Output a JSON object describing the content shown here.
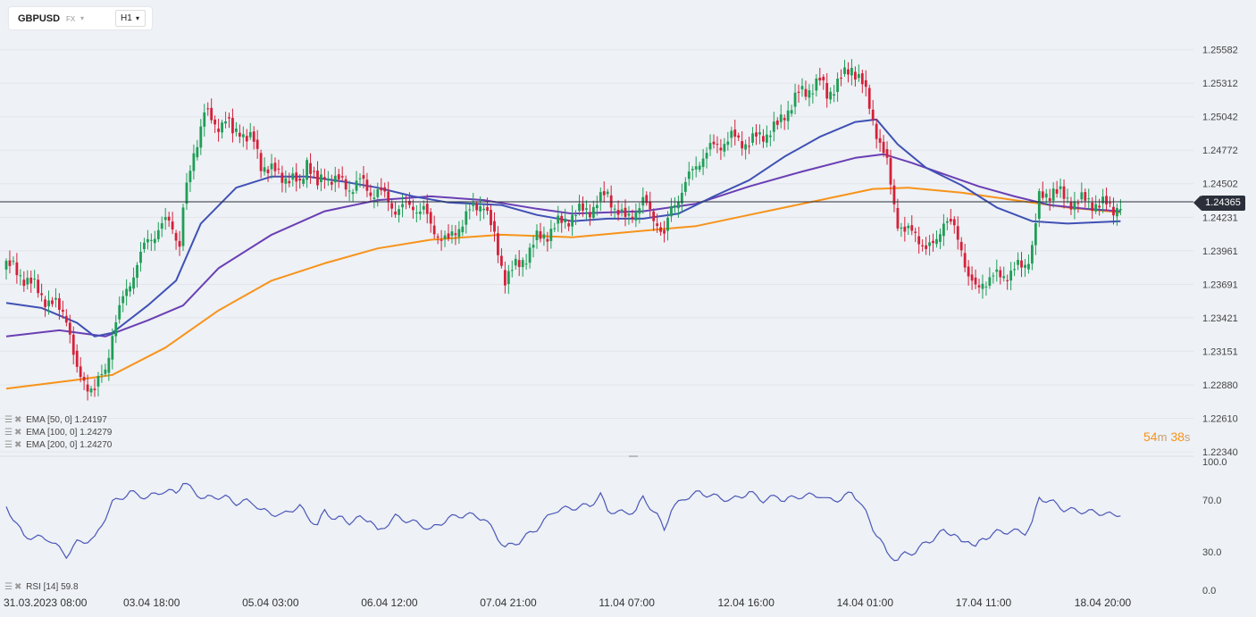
{
  "toolbar": {
    "symbol": "GBPUSD",
    "market": "FX",
    "timeframe": "H1"
  },
  "price_axis": [
    "1.25582",
    "1.25312",
    "1.25042",
    "1.24772",
    "1.24502",
    "1.24231",
    "1.23961",
    "1.23691",
    "1.23421",
    "1.23151",
    "1.22880",
    "1.22610",
    "1.22340"
  ],
  "current_price": "1.24365",
  "countdown": {
    "minutes": "54",
    "m": "m",
    "seconds": "38",
    "s": "s"
  },
  "indicators": [
    {
      "label": "EMA [50,  0]",
      "value": "1.24197",
      "color": "#3f51b5"
    },
    {
      "label": "EMA [100,  0]",
      "value": "1.24279",
      "color": "#6a3fb5"
    },
    {
      "label": "EMA [200,  0]",
      "value": "1.24270",
      "color": "#f7931a"
    }
  ],
  "rsi": {
    "label": "RSI [14]",
    "value": "59.8",
    "axis": [
      "100.0",
      "70.0",
      "30.0",
      "0.0"
    ]
  },
  "time_axis": [
    "31.03.2023  08:00",
    "03.04  18:00",
    "05.04  03:00",
    "06.04  12:00",
    "07.04  21:00",
    "11.04  07:00",
    "12.04  16:00",
    "14.04  01:00",
    "17.04  11:00",
    "18.04  20:00"
  ],
  "chart_data": {
    "type": "candlestick",
    "symbol": "GBPUSD",
    "timeframe": "H1",
    "ylim": [
      1.2234,
      1.2558
    ],
    "rsi_ylim": [
      0,
      100
    ],
    "current_price": 1.24365,
    "close_path": [
      [
        0,
        1.2385
      ],
      [
        5,
        1.2375
      ],
      [
        12,
        1.2355
      ],
      [
        17,
        1.2345
      ],
      [
        20,
        1.2296
      ],
      [
        25,
        1.2284
      ],
      [
        28,
        1.23
      ],
      [
        30,
        1.233
      ],
      [
        34,
        1.2365
      ],
      [
        37,
        1.2385
      ],
      [
        40,
        1.2405
      ],
      [
        44,
        1.2416
      ],
      [
        46,
        1.242
      ],
      [
        48,
        1.241
      ],
      [
        49,
        1.24
      ],
      [
        50,
        1.243
      ],
      [
        53,
        1.2475
      ],
      [
        56,
        1.2508
      ],
      [
        59,
        1.2497
      ],
      [
        62,
        1.2502
      ],
      [
        64,
        1.249
      ],
      [
        66,
        1.2495
      ],
      [
        68,
        1.2487
      ],
      [
        70,
        1.2483
      ],
      [
        72,
        1.2467
      ],
      [
        75,
        1.246
      ],
      [
        78,
        1.2457
      ],
      [
        80,
        1.2455
      ],
      [
        83,
        1.2448
      ],
      [
        85,
        1.2471
      ],
      [
        88,
        1.2447
      ],
      [
        90,
        1.2458
      ],
      [
        93,
        1.2453
      ],
      [
        95,
        1.245
      ],
      [
        97,
        1.2447
      ],
      [
        100,
        1.2452
      ],
      [
        103,
        1.2443
      ],
      [
        105,
        1.2445
      ],
      [
        110,
        1.243
      ],
      [
        115,
        1.2432
      ],
      [
        118,
        1.2429
      ],
      [
        120,
        1.2415
      ],
      [
        125,
        1.2403
      ],
      [
        130,
        1.2425
      ],
      [
        135,
        1.2436
      ],
      [
        138,
        1.2405
      ],
      [
        141,
        1.2375
      ],
      [
        145,
        1.2385
      ],
      [
        150,
        1.2405
      ],
      [
        155,
        1.2415
      ],
      [
        160,
        1.2425
      ],
      [
        165,
        1.243
      ],
      [
        168,
        1.2437
      ],
      [
        170,
        1.2442
      ],
      [
        173,
        1.2427
      ],
      [
        175,
        1.2421
      ],
      [
        178,
        1.243
      ],
      [
        180,
        1.2435
      ],
      [
        184,
        1.242
      ],
      [
        186,
        1.2407
      ],
      [
        188,
        1.243
      ],
      [
        192,
        1.245
      ],
      [
        196,
        1.247
      ],
      [
        200,
        1.248
      ],
      [
        205,
        1.2487
      ],
      [
        210,
        1.2483
      ],
      [
        214,
        1.249
      ],
      [
        218,
        1.2496
      ],
      [
        220,
        1.2507
      ],
      [
        224,
        1.2522
      ],
      [
        230,
        1.2532
      ],
      [
        232,
        1.2523
      ],
      [
        236,
        1.2534
      ],
      [
        239,
        1.2545
      ],
      [
        241,
        1.2536
      ],
      [
        243,
        1.2522
      ],
      [
        245,
        1.2503
      ],
      [
        247,
        1.2482
      ],
      [
        249,
        1.2465
      ],
      [
        252,
        1.242
      ],
      [
        254,
        1.241
      ],
      [
        257,
        1.2412
      ],
      [
        260,
        1.2396
      ],
      [
        262,
        1.24
      ],
      [
        265,
        1.2421
      ],
      [
        268,
        1.2413
      ],
      [
        270,
        1.24
      ],
      [
        272,
        1.2374
      ],
      [
        274,
        1.2364
      ],
      [
        276,
        1.2372
      ],
      [
        280,
        1.2375
      ],
      [
        284,
        1.2379
      ],
      [
        288,
        1.2385
      ],
      [
        290,
        1.24
      ],
      [
        292,
        1.2437
      ],
      [
        296,
        1.2446
      ],
      [
        299,
        1.2438
      ],
      [
        302,
        1.2436
      ],
      [
        306,
        1.2436
      ],
      [
        310,
        1.2433
      ],
      [
        313,
        1.2431
      ],
      [
        315,
        1.2433
      ]
    ],
    "ema50_path": [
      [
        0,
        1.2354
      ],
      [
        10,
        1.235
      ],
      [
        20,
        1.2338
      ],
      [
        25,
        1.2327
      ],
      [
        30,
        1.233
      ],
      [
        40,
        1.2352
      ],
      [
        48,
        1.2372
      ],
      [
        55,
        1.2418
      ],
      [
        65,
        1.2447
      ],
      [
        75,
        1.2456
      ],
      [
        85,
        1.2456
      ],
      [
        95,
        1.2452
      ],
      [
        105,
        1.2447
      ],
      [
        115,
        1.244
      ],
      [
        125,
        1.2435
      ],
      [
        140,
        1.2433
      ],
      [
        150,
        1.2425
      ],
      [
        160,
        1.242
      ],
      [
        170,
        1.2422
      ],
      [
        180,
        1.2422
      ],
      [
        190,
        1.2426
      ],
      [
        200,
        1.244
      ],
      [
        210,
        1.2453
      ],
      [
        220,
        1.2472
      ],
      [
        230,
        1.2488
      ],
      [
        240,
        1.25
      ],
      [
        246,
        1.2502
      ],
      [
        252,
        1.2482
      ],
      [
        260,
        1.2463
      ],
      [
        270,
        1.2449
      ],
      [
        280,
        1.2431
      ],
      [
        290,
        1.242
      ],
      [
        300,
        1.2418
      ],
      [
        315,
        1.242
      ]
    ],
    "ema100_path": [
      [
        0,
        1.2327
      ],
      [
        15,
        1.2332
      ],
      [
        28,
        1.2327
      ],
      [
        40,
        1.234
      ],
      [
        50,
        1.2352
      ],
      [
        60,
        1.2382
      ],
      [
        75,
        1.2409
      ],
      [
        90,
        1.2428
      ],
      [
        105,
        1.2437
      ],
      [
        120,
        1.244
      ],
      [
        135,
        1.2437
      ],
      [
        150,
        1.243
      ],
      [
        160,
        1.2426
      ],
      [
        170,
        1.2427
      ],
      [
        180,
        1.2428
      ],
      [
        195,
        1.2434
      ],
      [
        210,
        1.2448
      ],
      [
        225,
        1.246
      ],
      [
        240,
        1.2471
      ],
      [
        248,
        1.2474
      ],
      [
        256,
        1.2467
      ],
      [
        265,
        1.2458
      ],
      [
        275,
        1.2448
      ],
      [
        285,
        1.244
      ],
      [
        295,
        1.2433
      ],
      [
        305,
        1.243
      ],
      [
        315,
        1.2428
      ]
    ],
    "ema200_path": [
      [
        0,
        1.2285
      ],
      [
        20,
        1.2292
      ],
      [
        30,
        1.2296
      ],
      [
        45,
        1.2318
      ],
      [
        60,
        1.2348
      ],
      [
        75,
        1.2372
      ],
      [
        90,
        1.2386
      ],
      [
        105,
        1.2398
      ],
      [
        120,
        1.2405
      ],
      [
        140,
        1.2409
      ],
      [
        160,
        1.2407
      ],
      [
        175,
        1.2411
      ],
      [
        195,
        1.2416
      ],
      [
        210,
        1.2425
      ],
      [
        230,
        1.2437
      ],
      [
        245,
        1.2446
      ],
      [
        255,
        1.2447
      ],
      [
        270,
        1.2443
      ],
      [
        285,
        1.2437
      ],
      [
        300,
        1.2431
      ],
      [
        315,
        1.2427
      ]
    ],
    "rsi_path": [
      [
        0,
        65
      ],
      [
        5,
        42
      ],
      [
        12,
        40
      ],
      [
        17,
        27
      ],
      [
        20,
        37
      ],
      [
        25,
        40
      ],
      [
        30,
        68
      ],
      [
        35,
        76
      ],
      [
        40,
        72
      ],
      [
        44,
        77
      ],
      [
        48,
        76
      ],
      [
        50,
        84
      ],
      [
        53,
        77
      ],
      [
        56,
        71
      ],
      [
        59,
        73
      ],
      [
        62,
        72
      ],
      [
        65,
        68
      ],
      [
        68,
        69
      ],
      [
        70,
        68
      ],
      [
        72,
        62
      ],
      [
        75,
        60
      ],
      [
        78,
        58
      ],
      [
        80,
        62
      ],
      [
        83,
        65
      ],
      [
        85,
        58
      ],
      [
        88,
        50
      ],
      [
        90,
        62
      ],
      [
        93,
        55
      ],
      [
        95,
        56
      ],
      [
        97,
        53
      ],
      [
        100,
        56
      ],
      [
        103,
        55
      ],
      [
        105,
        45
      ],
      [
        110,
        57
      ],
      [
        115,
        53
      ],
      [
        118,
        50
      ],
      [
        120,
        47
      ],
      [
        125,
        56
      ],
      [
        130,
        59
      ],
      [
        135,
        56
      ],
      [
        138,
        45
      ],
      [
        141,
        33
      ],
      [
        145,
        38
      ],
      [
        150,
        48
      ],
      [
        155,
        62
      ],
      [
        160,
        64
      ],
      [
        165,
        66
      ],
      [
        168,
        74
      ],
      [
        170,
        62
      ],
      [
        175,
        60
      ],
      [
        178,
        62
      ],
      [
        180,
        72
      ],
      [
        184,
        58
      ],
      [
        186,
        47
      ],
      [
        188,
        63
      ],
      [
        192,
        72
      ],
      [
        196,
        76
      ],
      [
        200,
        73
      ],
      [
        205,
        70
      ],
      [
        210,
        76
      ],
      [
        214,
        70
      ],
      [
        218,
        73
      ],
      [
        220,
        70
      ],
      [
        224,
        73
      ],
      [
        230,
        74
      ],
      [
        232,
        70
      ],
      [
        236,
        71
      ],
      [
        239,
        76
      ],
      [
        241,
        70
      ],
      [
        243,
        60
      ],
      [
        245,
        48
      ],
      [
        247,
        40
      ],
      [
        249,
        28
      ],
      [
        252,
        24
      ],
      [
        254,
        28
      ],
      [
        257,
        30
      ],
      [
        260,
        37
      ],
      [
        262,
        40
      ],
      [
        265,
        46
      ],
      [
        268,
        44
      ],
      [
        270,
        36
      ],
      [
        272,
        40
      ],
      [
        274,
        33
      ],
      [
        276,
        40
      ],
      [
        280,
        45
      ],
      [
        284,
        46
      ],
      [
        288,
        45
      ],
      [
        290,
        52
      ],
      [
        292,
        72
      ],
      [
        296,
        68
      ],
      [
        299,
        63
      ],
      [
        302,
        62
      ],
      [
        306,
        61
      ],
      [
        310,
        60
      ],
      [
        313,
        58
      ],
      [
        315,
        59.8
      ]
    ]
  }
}
